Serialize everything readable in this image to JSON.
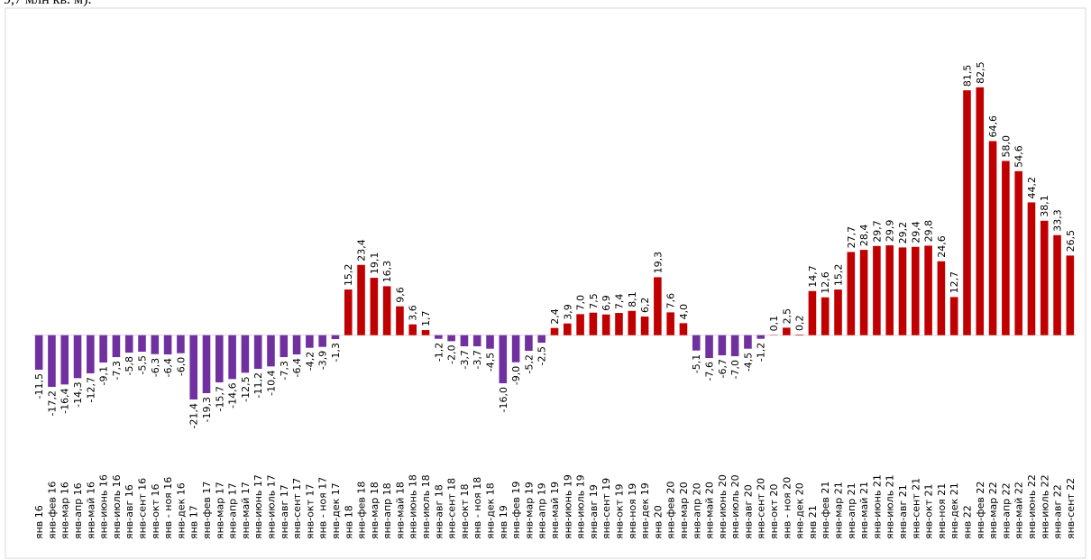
{
  "header_fragment": "9,7 млн кв. м).",
  "chart_data": {
    "type": "bar",
    "categories": [
      "янв 16",
      "янв-фев 16",
      "янв-мар 16",
      "янв-апр 16",
      "янв-май 16",
      "янв-июнь 16",
      "янв-июль 16",
      "янв-авг 16",
      "янв-сент 16",
      "янв-окт 16",
      "янв - ноя 16",
      "янв-дек 16",
      "янв 17",
      "янв-фев 17",
      "янв-мар 17",
      "янв-апр 17",
      "янв-май 17",
      "янв-июнь 17",
      "янв-июль 17",
      "янв-авг 17",
      "янв-сент 17",
      "янв-окт 17",
      "янв - ноя 17",
      "янв-дек 17",
      "янв 18",
      "янв-фев 18",
      "янв-мар 18",
      "янв-апр 18",
      "янв-май 18",
      "янв-июнь 18",
      "янв-июль 18",
      "янв-авг 18",
      "янв-сент 18",
      "янв-окт 18",
      "янв - ноя 18",
      "янв-дек 18",
      "янв 19",
      "янв-фев 19",
      "янв-мар 19",
      "янв-апр 19",
      "янв-май 19",
      "янв-июнь 19",
      "янв-июль 19",
      "янв-авг 19",
      "янв-сент 19",
      "янв-окт 19",
      "янв-ноя 19",
      "янв-дек 19",
      "янв 20",
      "янв-фев 20",
      "янв-мар 20",
      "янв-апр 20",
      "янв-май 20",
      "янв-июнь 20",
      "янв-июль 20",
      "янв-авг 20",
      "янв-сент 20",
      "янв-окт 20",
      "янв - ноя 20",
      "янв-дек 20",
      "янв 21",
      "янв-фев 21",
      "янв-мар 21",
      "янв-апр 21",
      "янв-май 21",
      "янв-июнь 21",
      "янв-июль 21",
      "янв-авг 21",
      "янв-сент 21",
      "янв-окт 21",
      "янв-ноя 21",
      "янв-дек 21",
      "янв 22",
      "янв-фев 22",
      "янв-мар 22",
      "янв-апр 22",
      "янв-май 22",
      "янв-июнь 22",
      "янв-июль 22",
      "янв-авг 22",
      "янв-сент 22"
    ],
    "values": [
      -11.5,
      -17.2,
      -16.4,
      -14.3,
      -12.7,
      -9.1,
      -7.3,
      -5.8,
      -5.5,
      -6.3,
      -6.4,
      -6.0,
      -21.4,
      -19.3,
      -15.7,
      -14.6,
      -12.5,
      -11.2,
      -10.4,
      -7.3,
      -6.4,
      -4.2,
      -3.9,
      -1.3,
      15.2,
      23.4,
      19.1,
      16.3,
      9.6,
      3.6,
      1.7,
      -1.2,
      -2.0,
      -3.7,
      -3.7,
      -4.5,
      -16.0,
      -9.0,
      -5.2,
      -2.5,
      2.4,
      3.9,
      7.0,
      7.5,
      6.9,
      7.4,
      8.1,
      6.2,
      19.3,
      7.6,
      4.0,
      -5.1,
      -7.6,
      -6.7,
      -7.0,
      -4.5,
      -1.2,
      0.1,
      2.5,
      0.2,
      14.7,
      12.6,
      15.2,
      27.7,
      28.4,
      29.7,
      29.9,
      29.2,
      29.4,
      29.8,
      24.6,
      12.7,
      81.5,
      82.5,
      64.6,
      58.0,
      54.6,
      44.2,
      38.1,
      33.3,
      26.5
    ],
    "value_labels": [
      "-11,5",
      "-17,2",
      "-16,4",
      "-14,3",
      "-12,7",
      "-9,1",
      "-7,3",
      "-5,8",
      "-5,5",
      "-6,3",
      "-6,4",
      "-6,0",
      "-21,4",
      "-19,3",
      "-15,7",
      "-14,6",
      "-12,5",
      "-11,2",
      "-10,4",
      "-7,3",
      "-6,4",
      "-4,2",
      "-3,9",
      "-1,3",
      "15,2",
      "23,4",
      "19,1",
      "16,3",
      "9,6",
      "3,6",
      "1,7",
      "-1,2",
      "-2,0",
      "-3,7",
      "-3,7",
      "-4,5",
      "-16,0",
      "-9,0",
      "-5,2",
      "-2,5",
      "2,4",
      "3,9",
      "7,0",
      "7,5",
      "6,9",
      "7,4",
      "8,1",
      "6,2",
      "19,3",
      "7,6",
      "4,0",
      "-5,1",
      "-7,6",
      "-6,7",
      "-7,0",
      "-4,5",
      "-1,2",
      "0,1",
      "2,5",
      "0,2",
      "14,7",
      "12,6",
      "15,2",
      "27,7",
      "28,4",
      "29,7",
      "29,9",
      "29,2",
      "29,4",
      "29,8",
      "24,6",
      "12,7",
      "81,5",
      "82,5",
      "64,6",
      "58,0",
      "54,6",
      "44,2",
      "38,1",
      "33,3",
      "26,5"
    ],
    "positive_color": "#c00000",
    "negative_color": "#7030a0",
    "ylim": [
      -25,
      85
    ]
  }
}
